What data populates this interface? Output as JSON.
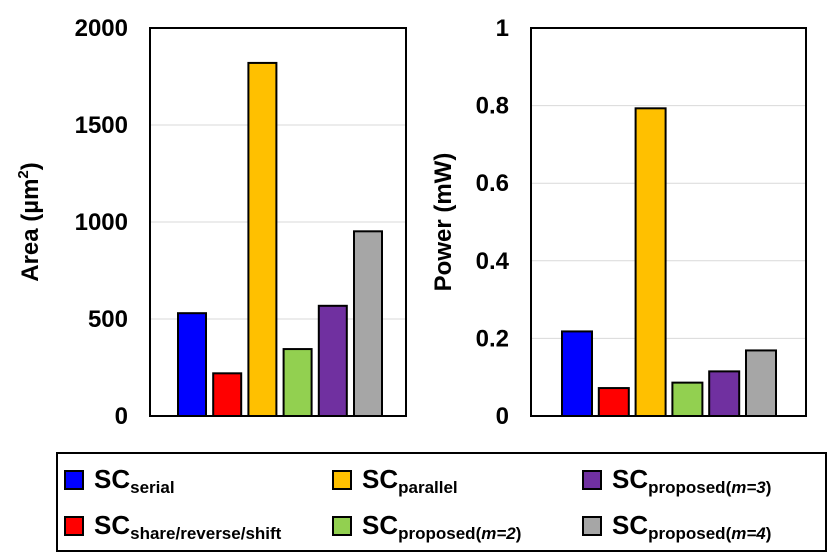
{
  "chart_data": [
    {
      "type": "bar",
      "ylabel": "Area (µm²)",
      "ylabel_base": "Area (µm",
      "ylabel_sup": "2",
      "ylabel_end": ")",
      "ylim": [
        0,
        2000
      ],
      "yticks": [
        0,
        500,
        1000,
        1500,
        2000
      ],
      "ytick_labels": [
        "0",
        "500",
        "1000",
        "1500",
        "2000"
      ],
      "grid": true,
      "categories": [
        "SCserial",
        "SCshare/reverse/shift",
        "SCparallel",
        "SCproposed(m=2)",
        "SCproposed(m=3)",
        "SCproposed(m=4)"
      ],
      "values": [
        530,
        220,
        1820,
        345,
        568,
        952
      ],
      "colors": [
        "#0000FF",
        "#FF0000",
        "#FFC000",
        "#92D050",
        "#7030A0",
        "#A6A6A6"
      ]
    },
    {
      "type": "bar",
      "ylabel": "Power (mW)",
      "ylim": [
        0,
        1
      ],
      "yticks": [
        0,
        0.2,
        0.4,
        0.6,
        0.8,
        1
      ],
      "ytick_labels": [
        "0",
        "0.2",
        "0.4",
        "0.6",
        "0.8",
        "1"
      ],
      "grid": true,
      "categories": [
        "SCserial",
        "SCshare/reverse/shift",
        "SCparallel",
        "SCproposed(m=2)",
        "SCproposed(m=3)",
        "SCproposed(m=4)"
      ],
      "values": [
        0.218,
        0.072,
        0.793,
        0.086,
        0.115,
        0.169
      ],
      "colors": [
        "#0000FF",
        "#FF0000",
        "#FFC000",
        "#92D050",
        "#7030A0",
        "#A6A6A6"
      ]
    }
  ],
  "legend": {
    "placement": "bottom",
    "items": [
      {
        "main": "SC",
        "sub": "serial",
        "color": "#0000FF"
      },
      {
        "main": "SC",
        "sub": "parallel",
        "color": "#FFC000"
      },
      {
        "main": "SC",
        "sub": "proposed(",
        "sub_italic": "m=3",
        "sub_end": ")",
        "color": "#7030A0"
      },
      {
        "main": "SC",
        "sub": "share/reverse/shift",
        "color": "#FF0000"
      },
      {
        "main": "SC",
        "sub": "proposed(",
        "sub_italic": "m=2",
        "sub_end": ")",
        "color": "#92D050"
      },
      {
        "main": "SC",
        "sub": "proposed(",
        "sub_italic": "m=4",
        "sub_end": ")",
        "color": "#A6A6A6"
      }
    ]
  }
}
